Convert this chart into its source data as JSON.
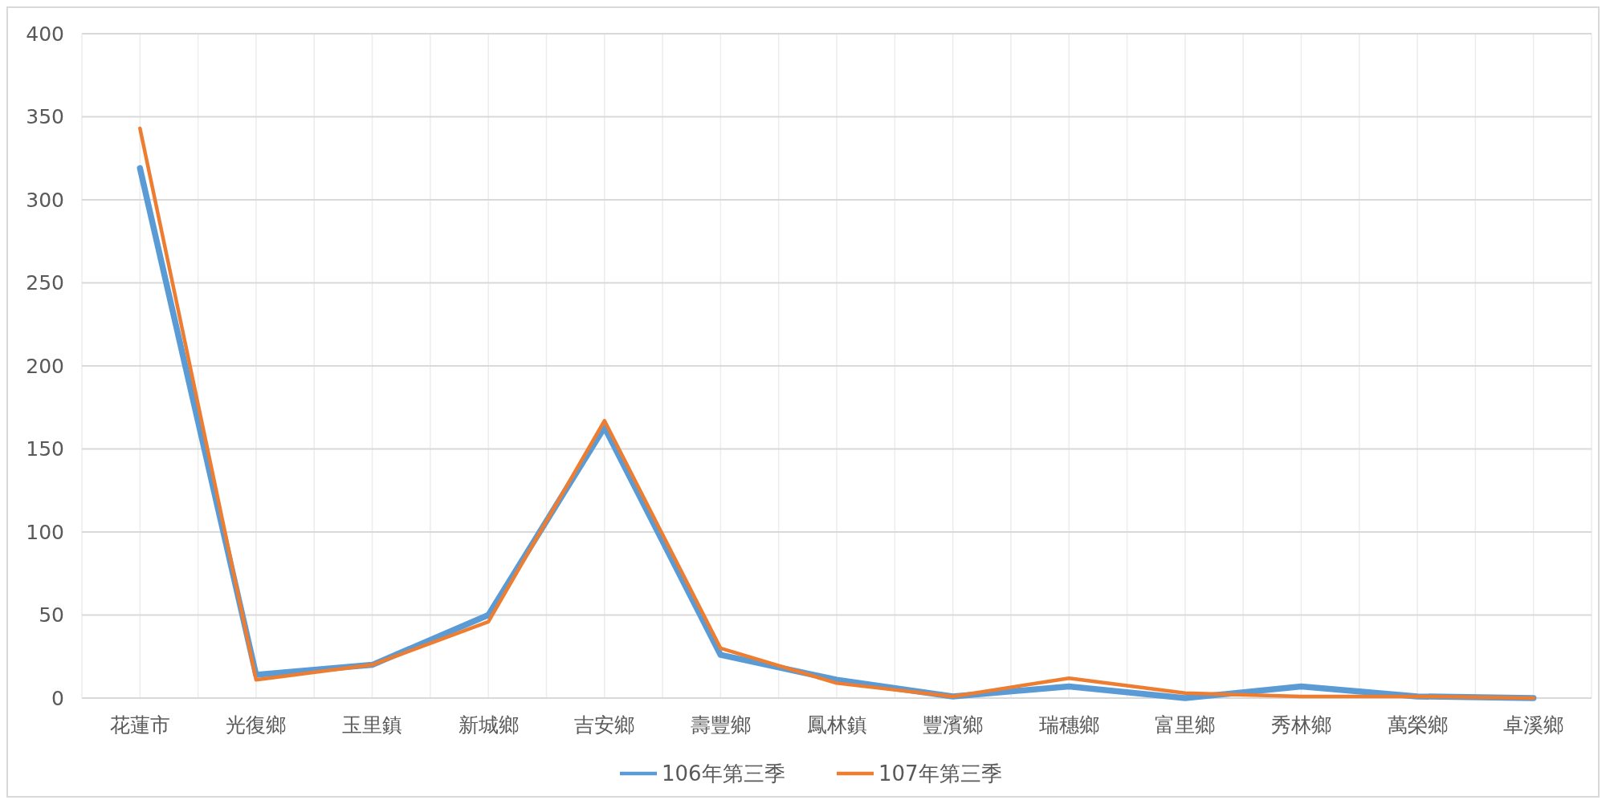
{
  "chart_data": {
    "type": "line",
    "categories": [
      "花蓮市",
      "光復鄉",
      "玉里鎮",
      "新城鄉",
      "吉安鄉",
      "壽豐鄉",
      "鳳林鎮",
      "豐濱鄉",
      "瑞穗鄉",
      "富里鄉",
      "秀林鄉",
      "萬榮鄉",
      "卓溪鄉"
    ],
    "series": [
      {
        "name": "106年第三季",
        "color": "#5b9bd5",
        "values": [
          319,
          14,
          20,
          50,
          163,
          26,
          11,
          1,
          7,
          0,
          7,
          1,
          0
        ]
      },
      {
        "name": "107年第三季",
        "color": "#ed7d31",
        "values": [
          343,
          11,
          20,
          46,
          167,
          30,
          9,
          1,
          12,
          3,
          1,
          1,
          0
        ]
      }
    ],
    "ylim": [
      0,
      400
    ],
    "yticks": [
      0,
      50,
      100,
      150,
      200,
      250,
      300,
      350,
      400
    ],
    "grid": true,
    "legend": "bottom",
    "marker": "none",
    "line_style": "solid"
  }
}
